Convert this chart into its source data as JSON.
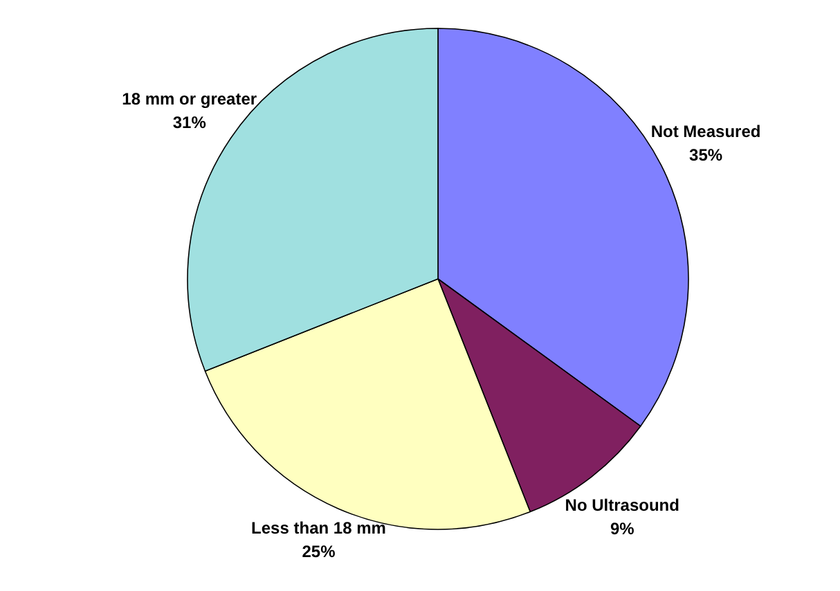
{
  "chart_data": {
    "type": "pie",
    "categories": [
      "Not Measured",
      "No Ultrasound",
      "Less than 18 mm",
      "18 mm or greater"
    ],
    "values": [
      35,
      9,
      25,
      31
    ],
    "colors": [
      "#8080ff",
      "#802060",
      "#ffffc0",
      "#a0e0e0"
    ],
    "value_labels": [
      "35%",
      "9%",
      "25%",
      "31%"
    ]
  }
}
